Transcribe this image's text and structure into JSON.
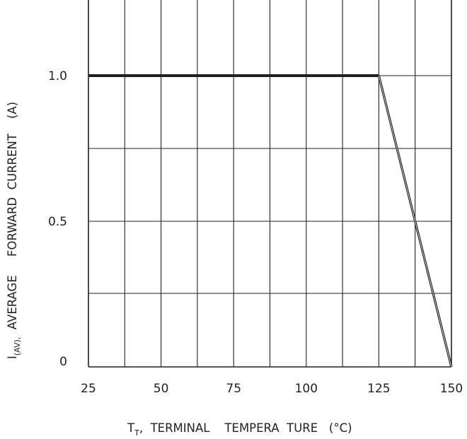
{
  "chart_data": {
    "type": "line",
    "title": "",
    "xlabel": {
      "main": "T",
      "subscript": "T",
      "rest": ",  TERMINAL    TEMPERA  TURE   (°C)"
    },
    "ylabel": {
      "main": "I",
      "subscript": "(AV),",
      "rest": "  AVERAGE     FORWARD  CURRENT    (A)"
    },
    "xlim": [
      25,
      150
    ],
    "ylim": [
      0,
      1.2
    ],
    "x_ticks": [
      25,
      50,
      75,
      100,
      125,
      150
    ],
    "x_tick_labels": [
      "25",
      "50",
      "75",
      "100",
      "125",
      "150"
    ],
    "y_ticks": [
      0,
      0.5,
      1.0
    ],
    "y_tick_labels": [
      "0",
      "0.5",
      "1.0"
    ],
    "x_gridlines": [
      25,
      37.5,
      50,
      62.5,
      75,
      87.5,
      100,
      112.5,
      125,
      137.5,
      150
    ],
    "y_gridlines": [
      0,
      0.25,
      0.5,
      0.75,
      1.0,
      1.25
    ],
    "grid": true,
    "legend": "none",
    "line_color": "#231f20",
    "series": [
      {
        "x": [
          25,
          125,
          150
        ],
        "y": [
          1.0,
          1.0,
          0
        ]
      }
    ]
  }
}
